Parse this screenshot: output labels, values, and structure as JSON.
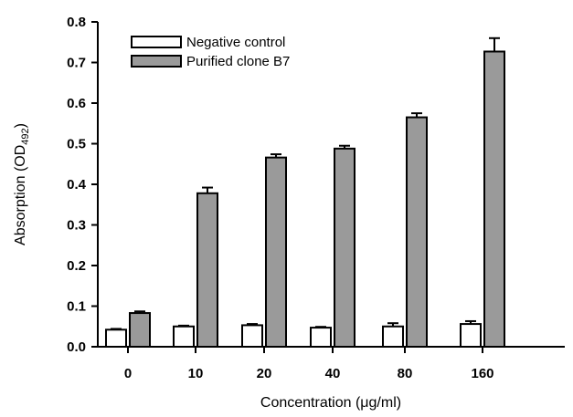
{
  "chart_data": {
    "type": "bar",
    "categories": [
      "0",
      "10",
      "20",
      "40",
      "80",
      "160"
    ],
    "series": [
      {
        "name": "Negative control",
        "values": [
          0.042,
          0.05,
          0.053,
          0.047,
          0.05,
          0.056
        ],
        "errors": [
          0.002,
          0.002,
          0.003,
          0.002,
          0.008,
          0.007
        ],
        "color": "#ffffff"
      },
      {
        "name": "Purified clone B7",
        "values": [
          0.083,
          0.378,
          0.466,
          0.488,
          0.565,
          0.727
        ],
        "errors": [
          0.004,
          0.014,
          0.008,
          0.007,
          0.01,
          0.033
        ],
        "color": "#9a9a9a"
      }
    ],
    "xlabel": "Concentration (μg/ml)",
    "ylabel_main": "Absorption (OD",
    "ylabel_sub": "492",
    "ylabel_end": ")",
    "ylim": [
      0,
      0.8
    ],
    "yticks": [
      "0.0",
      "0.1",
      "0.2",
      "0.3",
      "0.4",
      "0.5",
      "0.6",
      "0.7",
      "0.8"
    ],
    "legend_position": "top-left",
    "grid": false
  }
}
